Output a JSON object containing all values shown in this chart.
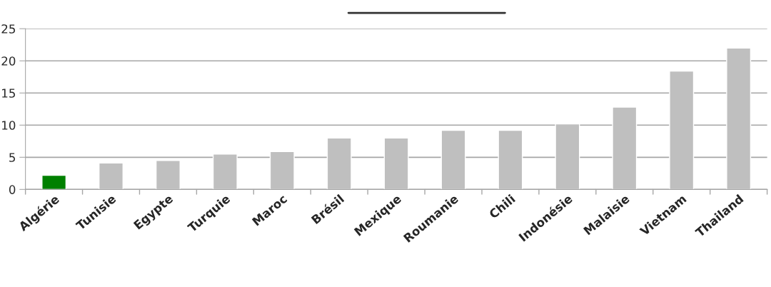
{
  "chart_data": {
    "type": "bar",
    "categories": [
      "Algérie",
      "Tunisie",
      "Egypte",
      "Turquie",
      "Maroc",
      "Brésil",
      "Mexique",
      "Roumanie",
      "Chili",
      "Indonésie",
      "Malaisie",
      "Vietnam",
      "Thailand"
    ],
    "values": [
      2.2,
      4.1,
      4.5,
      5.5,
      5.9,
      8.0,
      8.0,
      9.2,
      9.2,
      10.2,
      12.8,
      18.4,
      22.0
    ],
    "colors": [
      "#008000",
      "#bfbfbf",
      "#bfbfbf",
      "#bfbfbf",
      "#bfbfbf",
      "#bfbfbf",
      "#bfbfbf",
      "#bfbfbf",
      "#bfbfbf",
      "#bfbfbf",
      "#bfbfbf",
      "#bfbfbf",
      "#bfbfbf"
    ],
    "ylim": [
      0,
      25
    ],
    "yticks": [
      0,
      5,
      10,
      15,
      20,
      25
    ],
    "grid": "y"
  }
}
